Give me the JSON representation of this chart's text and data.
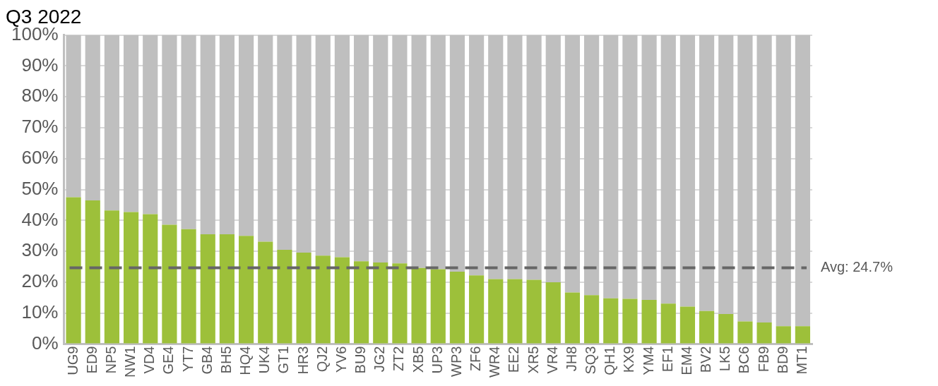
{
  "chart_data": {
    "type": "bar",
    "title": "Q3 2022",
    "stacked": true,
    "categories": [
      "UG9",
      "ED9",
      "NP5",
      "NW1",
      "VD4",
      "GE4",
      "YT7",
      "GB4",
      "BH5",
      "HQ4",
      "UK4",
      "GT1",
      "HR3",
      "QJ2",
      "YV6",
      "BU9",
      "JG2",
      "ZT2",
      "XB5",
      "UP3",
      "WP3",
      "ZF6",
      "WR4",
      "EE2",
      "XR5",
      "VR4",
      "JH8",
      "SQ3",
      "QH1",
      "KX9",
      "YM4",
      "EF1",
      "EM4",
      "BV2",
      "LK5",
      "BC6",
      "FB9",
      "BD9",
      "MT1"
    ],
    "series": [
      {
        "color": "#9dc03a",
        "values": [
          47.5,
          46.5,
          43.2,
          42.7,
          42.0,
          38.6,
          37.2,
          35.5,
          35.5,
          35.0,
          33.1,
          30.5,
          29.6,
          28.6,
          28.1,
          26.8,
          26.4,
          26.1,
          24.6,
          24.2,
          23.4,
          22.2,
          21.0,
          21.0,
          20.8,
          20.0,
          16.7,
          15.8,
          14.8,
          14.6,
          14.3,
          13.1,
          12.1,
          10.7,
          9.7,
          7.3,
          7.0,
          5.8,
          5.8
        ]
      },
      {
        "color": "#bfbfbf",
        "values": [
          52.5,
          53.5,
          56.8,
          57.3,
          58.0,
          61.4,
          62.8,
          64.5,
          64.5,
          65.0,
          66.9,
          69.5,
          70.4,
          71.4,
          71.9,
          73.2,
          73.6,
          73.9,
          75.4,
          75.8,
          76.6,
          77.8,
          79.0,
          79.0,
          79.2,
          80.0,
          83.3,
          84.2,
          85.2,
          85.4,
          85.7,
          86.9,
          87.9,
          89.3,
          90.3,
          92.7,
          93.0,
          94.2,
          94.2
        ]
      }
    ],
    "ylim": [
      0,
      100
    ],
    "yticks": [
      {
        "value": 0,
        "label": "0%"
      },
      {
        "value": 10,
        "label": "10%"
      },
      {
        "value": 20,
        "label": "20%"
      },
      {
        "value": 30,
        "label": "30%"
      },
      {
        "value": 40,
        "label": "40%"
      },
      {
        "value": 50,
        "label": "50%"
      },
      {
        "value": 60,
        "label": "60%"
      },
      {
        "value": 70,
        "label": "70%"
      },
      {
        "value": 80,
        "label": "80%"
      },
      {
        "value": 90,
        "label": "90%"
      },
      {
        "value": 100,
        "label": "100%"
      }
    ],
    "grid": "y",
    "ref_lines": [
      {
        "axis": "y",
        "value": 24.7,
        "label": "Avg: 24.7%",
        "color": "#666666",
        "line_style": "dashed"
      }
    ]
  }
}
